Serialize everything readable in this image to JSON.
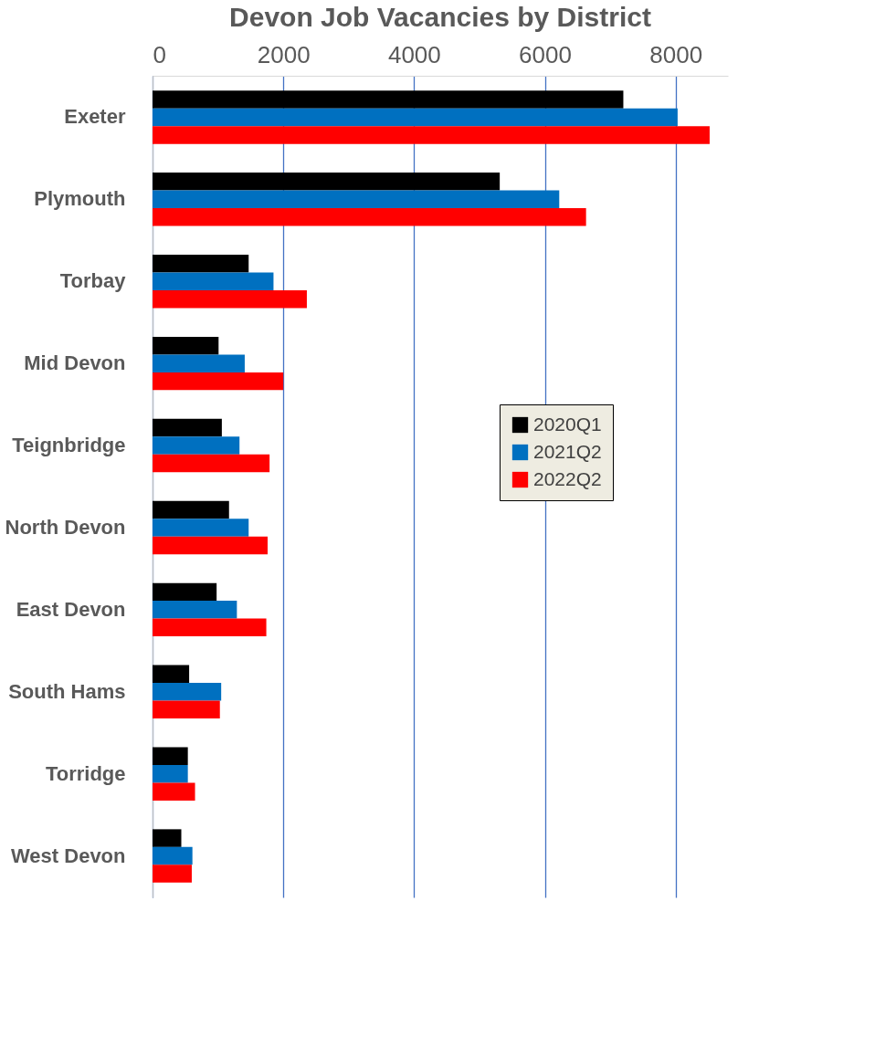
{
  "chart_data": {
    "type": "bar",
    "orientation": "horizontal",
    "title": "Devon Job Vacancies by District",
    "categories": [
      "Exeter",
      "Plymouth",
      "Torbay",
      "Mid Devon",
      "Teignbridge",
      "North Devon",
      "East Devon",
      "South Hams",
      "Torridge",
      "West Devon"
    ],
    "series": [
      {
        "name": "2020Q1",
        "color": "#000000",
        "values": [
          7200,
          5310,
          1470,
          1010,
          1060,
          1170,
          980,
          560,
          540,
          440
        ]
      },
      {
        "name": "2021Q2",
        "color": "#0070c0",
        "values": [
          8030,
          6220,
          1850,
          1410,
          1330,
          1470,
          1290,
          1050,
          540,
          610
        ]
      },
      {
        "name": "2022Q2",
        "color": "#ff0000",
        "values": [
          8520,
          6630,
          2360,
          2000,
          1790,
          1760,
          1740,
          1030,
          650,
          600
        ]
      }
    ],
    "xlim": [
      0,
      8800
    ],
    "xticks": [
      0,
      2000,
      4000,
      6000,
      8000
    ],
    "grid": "x",
    "legend": "right"
  }
}
